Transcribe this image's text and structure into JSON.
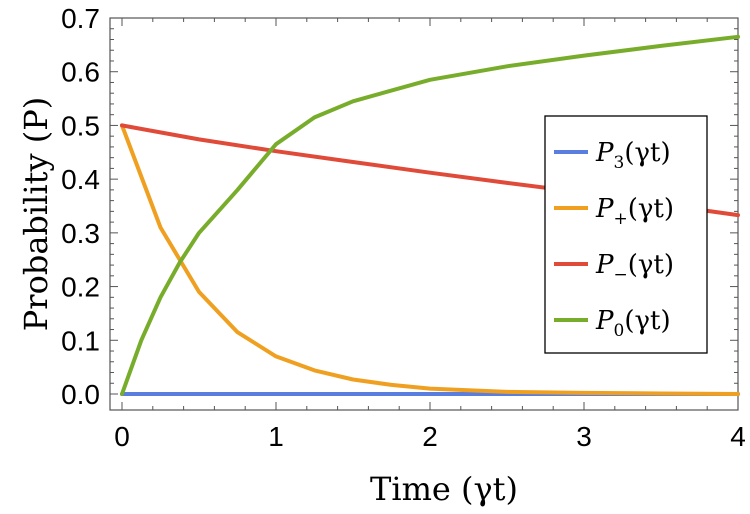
{
  "chart_data": {
    "type": "line",
    "xlabel": "Time (γt)",
    "ylabel": "Probability (P)",
    "xlim": [
      0,
      4
    ],
    "ylim": [
      0,
      0.7
    ],
    "x_ticks": [
      "0",
      "1",
      "2",
      "3",
      "4"
    ],
    "y_ticks": [
      "0.0",
      "0.1",
      "0.2",
      "0.3",
      "0.4",
      "0.5",
      "0.6",
      "0.7"
    ],
    "grid": false,
    "legend_position": "right",
    "series": [
      {
        "name": "P3(γt)",
        "label_main": "P",
        "label_sub": "3",
        "label_arg": "(γt)",
        "color": "#5a7de0",
        "x": [
          0,
          0.5,
          1,
          1.5,
          2,
          2.5,
          3,
          3.5,
          4
        ],
        "y": [
          0,
          0,
          0,
          0,
          0,
          0,
          0,
          0,
          0
        ]
      },
      {
        "name": "P+(γt)",
        "label_main": "P",
        "label_sub": "+",
        "label_arg": "(γt)",
        "color": "#f0a020",
        "x": [
          0,
          0.25,
          0.5,
          0.75,
          1,
          1.25,
          1.5,
          1.75,
          2,
          2.5,
          3,
          3.5,
          4
        ],
        "y": [
          0.5,
          0.31,
          0.19,
          0.115,
          0.07,
          0.044,
          0.027,
          0.017,
          0.01,
          0.004,
          0.002,
          0.001,
          0.0
        ]
      },
      {
        "name": "P−(γt)",
        "label_main": "P",
        "label_sub": "−",
        "label_arg": "(γt)",
        "color": "#e04a38",
        "x": [
          0,
          0.5,
          1,
          1.5,
          2,
          2.5,
          3,
          3.5,
          4
        ],
        "y": [
          0.5,
          0.474,
          0.452,
          0.432,
          0.412,
          0.393,
          0.375,
          0.353,
          0.333
        ]
      },
      {
        "name": "P0(γt)",
        "label_main": "P",
        "label_sub": "0",
        "label_arg": "(γt)",
        "color": "#78ad2c",
        "x": [
          0,
          0.125,
          0.25,
          0.375,
          0.5,
          0.75,
          1,
          1.25,
          1.5,
          2,
          2.5,
          3,
          3.5,
          4
        ],
        "y": [
          0,
          0.1,
          0.18,
          0.245,
          0.3,
          0.38,
          0.465,
          0.515,
          0.545,
          0.585,
          0.61,
          0.63,
          0.648,
          0.665
        ]
      }
    ]
  }
}
